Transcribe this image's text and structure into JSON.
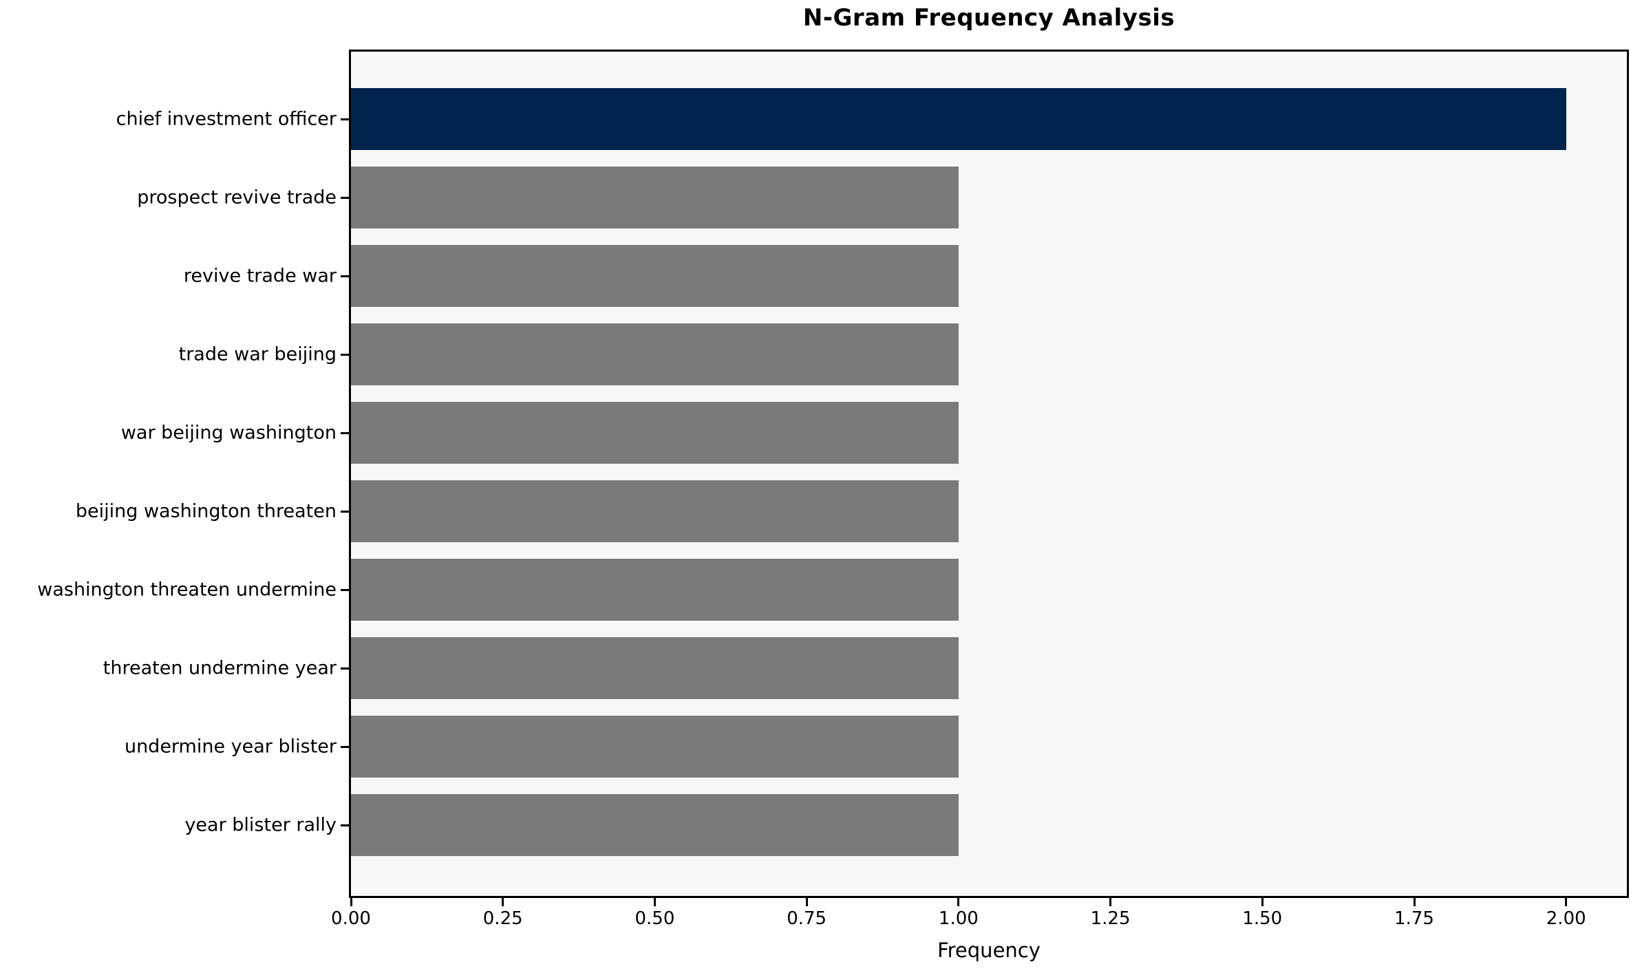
{
  "chart_data": {
    "type": "bar",
    "orientation": "horizontal",
    "title": "N-Gram Frequency Analysis",
    "xlabel": "Frequency",
    "ylabel": "",
    "categories": [
      "chief investment officer",
      "prospect revive trade",
      "revive trade war",
      "trade war beijing",
      "war beijing washington",
      "beijing washington threaten",
      "washington threaten undermine",
      "threaten undermine year",
      "undermine year blister",
      "year blister rally"
    ],
    "values": [
      2,
      1,
      1,
      1,
      1,
      1,
      1,
      1,
      1,
      1
    ],
    "bar_colors": [
      "#00244e",
      "#7a7a78",
      "#7a7a78",
      "#7a7a78",
      "#7a7a78",
      "#7a7a78",
      "#7a7a78",
      "#7a7a78",
      "#7a7a78",
      "#7a7a78"
    ],
    "xlim": [
      0,
      2.1
    ],
    "xticks": [
      "0.00",
      "0.25",
      "0.50",
      "0.75",
      "1.00",
      "1.25",
      "1.50",
      "1.75",
      "2.00"
    ],
    "grid": false,
    "legend": "none",
    "colors": {
      "highlight_bar": "#00244e",
      "default_bar": "#7a7a78",
      "plot_background": "#f7f7f6",
      "figure_background": "#ffffff",
      "axis": "#000000"
    }
  }
}
